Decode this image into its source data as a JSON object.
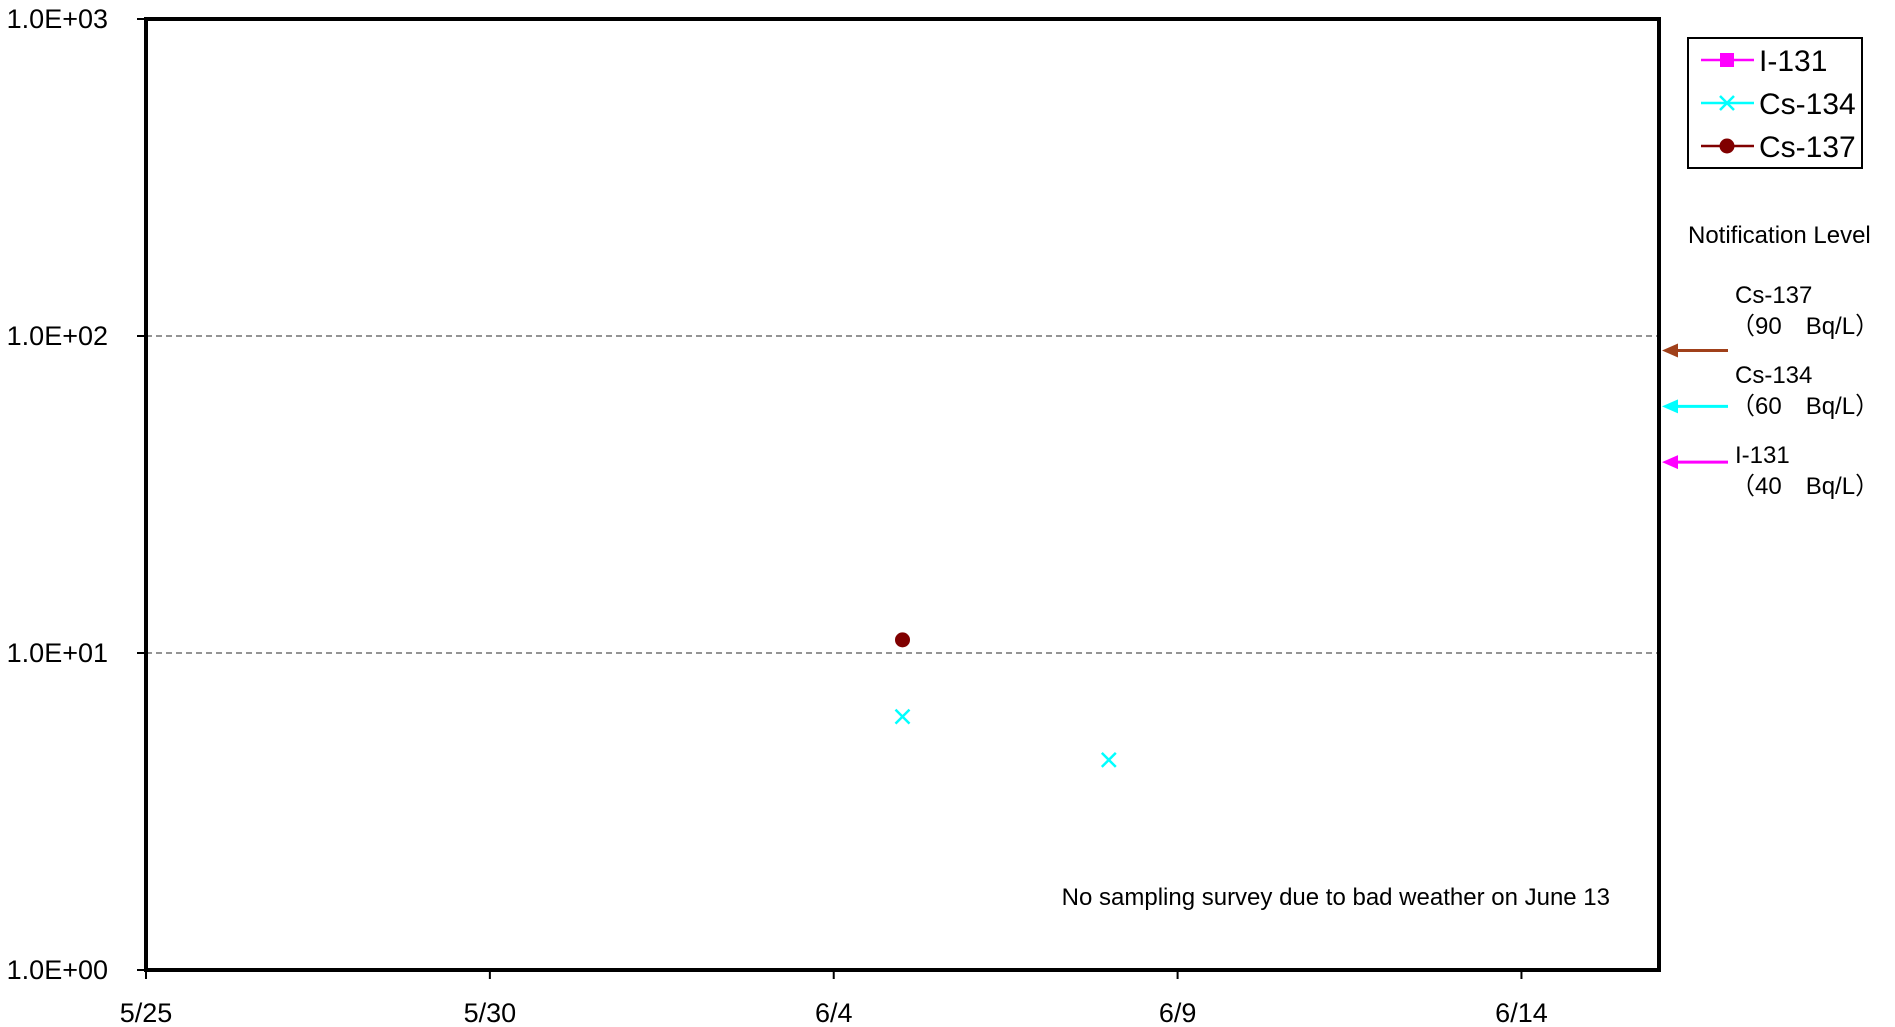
{
  "chart_data": {
    "type": "scatter",
    "title": "",
    "xlabel": "",
    "ylabel": "",
    "x_axis": {
      "type": "date",
      "min": "2011-05-25",
      "max": "2011-06-16",
      "ticks": [
        "5/25",
        "5/30",
        "6/4",
        "6/9",
        "6/14"
      ],
      "tick_dates": [
        "2011-05-25",
        "2011-05-30",
        "2011-06-04",
        "2011-06-09",
        "2011-06-14"
      ]
    },
    "y_axis": {
      "type": "log",
      "ylim": [
        1,
        1000
      ],
      "ticks": [
        "1.0E+00",
        "1.0E+01",
        "1.0E+02",
        "1.0E+03"
      ],
      "tick_values": [
        1,
        10,
        100,
        1000
      ],
      "grid": "dashed at 1.0E+01 and 1.0E+02"
    },
    "legend": {
      "placement": "top-right, outside plot",
      "entries": [
        "I-131",
        "Cs-134",
        "Cs-137"
      ]
    },
    "series": [
      {
        "name": "I-131",
        "color": "#ff00ff",
        "marker": "square",
        "points": []
      },
      {
        "name": "Cs-134",
        "color": "#00ffff",
        "marker": "x",
        "points": [
          {
            "x": "2011-06-05",
            "y": 6.3
          },
          {
            "x": "2011-06-08",
            "y": 4.6
          }
        ]
      },
      {
        "name": "Cs-137",
        "color": "#800000",
        "marker": "circle",
        "points": [
          {
            "x": "2011-06-05",
            "y": 11
          }
        ]
      }
    ],
    "notification_level": {
      "heading": "Notification Level",
      "items": [
        {
          "name": "Cs-137",
          "value": 90,
          "label": "（90　Bq/L）",
          "color": "#a0401a"
        },
        {
          "name": "Cs-134",
          "value": 60,
          "label": "（60　Bq/L）",
          "color": "#00ffff"
        },
        {
          "name": "I-131",
          "value": 40,
          "label": "（40　Bq/L）",
          "color": "#ff00ff"
        }
      ]
    },
    "annotation": "No sampling survey due to bad weather on June 13"
  }
}
